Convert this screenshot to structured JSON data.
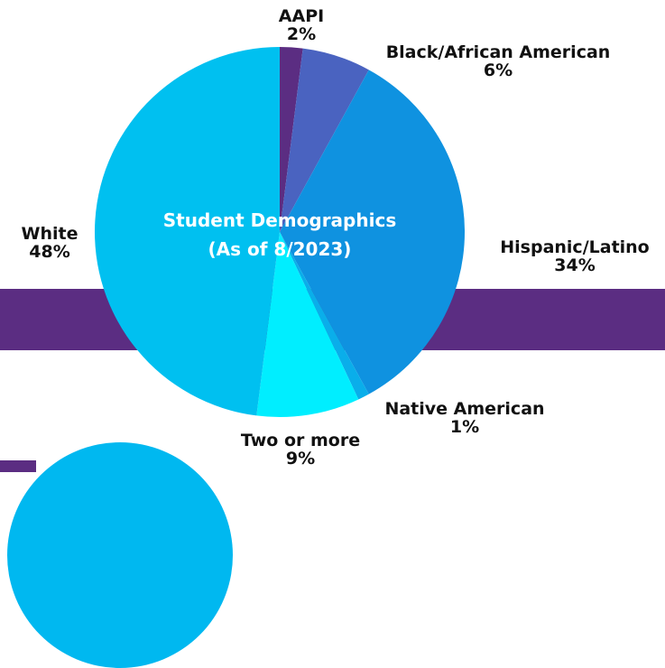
{
  "chart_data": {
    "type": "pie",
    "title": "Student Demographics",
    "subtitle": "(As of 8/2023)",
    "slices": [
      {
        "label": "AAPI",
        "value": 2,
        "value_label": "2%",
        "color": "#5b2d82"
      },
      {
        "label": "Black/African American",
        "value": 6,
        "value_label": "6%",
        "color": "#4a63c0"
      },
      {
        "label": "Hispanic/Latino",
        "value": 34,
        "value_label": "34%",
        "color": "#0f92e0"
      },
      {
        "label": "Native American",
        "value": 1,
        "value_label": "1%",
        "color": "#0aaeea"
      },
      {
        "label": "Two or more",
        "value": 9,
        "value_label": "9%",
        "color": "#00eeff"
      },
      {
        "label": "White",
        "value": 48,
        "value_label": "48%",
        "color": "#00c0f0"
      }
    ]
  },
  "colors": {
    "band": "#5b2d82",
    "label_text": "#111111",
    "title_text": "#ffffff"
  }
}
